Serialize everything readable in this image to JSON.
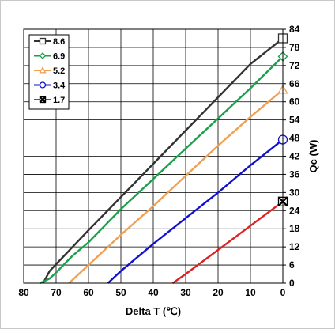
{
  "chart_data": {
    "type": "line",
    "xlabel": "Delta T (℃)",
    "ylabel": "Qc (W)",
    "xlim": [
      80,
      0
    ],
    "ylim": [
      0,
      84
    ],
    "x_reversed": true,
    "x_ticks": [
      80,
      70,
      60,
      50,
      40,
      30,
      20,
      10,
      0
    ],
    "y_ticks": [
      0,
      6,
      12,
      18,
      24,
      30,
      36,
      42,
      48,
      54,
      60,
      66,
      72,
      78,
      84
    ],
    "x_tick_labels": [
      "80",
      "70",
      "60",
      "50",
      "40",
      "30",
      "20",
      "10",
      "0"
    ],
    "y_tick_labels": [
      "0",
      "6",
      "12",
      "18",
      "24",
      "30",
      "36",
      "42",
      "48",
      "54",
      "60",
      "66",
      "72",
      "78",
      "84"
    ],
    "y_axis_side": "right",
    "grid": true,
    "legend_position": "top-left",
    "series": [
      {
        "name": "8.6",
        "color": "#333333",
        "marker": "open-square",
        "x": [
          74,
          72,
          68,
          60,
          50,
          40,
          30,
          20,
          10,
          0
        ],
        "y": [
          0,
          4,
          8.5,
          17.5,
          28.5,
          39.5,
          50.5,
          61.5,
          72.5,
          81
        ]
      },
      {
        "name": "6.9",
        "color": "#1aa04a",
        "marker": "open-diamond",
        "x": [
          75,
          72,
          70,
          65,
          60,
          50,
          40,
          30,
          20,
          10,
          0
        ],
        "y": [
          0,
          1.5,
          3.5,
          9,
          13.5,
          24.5,
          34.5,
          44.5,
          54.5,
          64.5,
          75
        ]
      },
      {
        "name": "5.2",
        "color": "#f0a050",
        "marker": "open-triangle",
        "x": [
          66,
          60,
          50,
          40,
          30,
          20,
          10,
          0
        ],
        "y": [
          0,
          6,
          16,
          25.5,
          35.5,
          45.5,
          55,
          64
        ]
      },
      {
        "name": "3.4",
        "color": "#1010d0",
        "marker": "open-circle",
        "x": [
          54,
          50,
          40,
          30,
          20,
          10,
          0
        ],
        "y": [
          0,
          4,
          13,
          21.5,
          30,
          39,
          47.5
        ]
      },
      {
        "name": "1.7",
        "color": "#e02020",
        "marker": "x-square",
        "x": [
          34,
          30,
          20,
          10,
          0
        ],
        "y": [
          0,
          3,
          11,
          19,
          27
        ]
      }
    ]
  }
}
